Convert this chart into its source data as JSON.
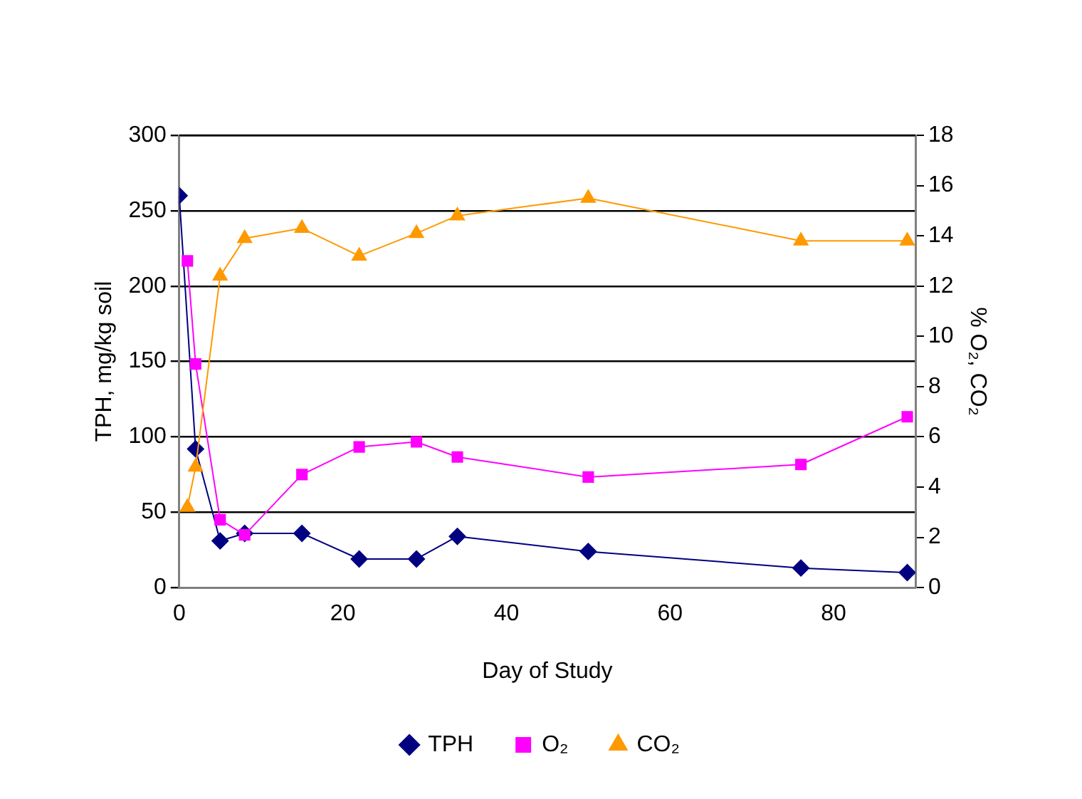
{
  "chart_data": {
    "type": "line",
    "xlabel": "Day of Study",
    "ylabel": "TPH, mg/kg soil",
    "y2label": "% O₂, CO₂",
    "xlim": [
      0,
      90
    ],
    "xticks": [
      0,
      20,
      40,
      60,
      80
    ],
    "ylim": [
      0,
      300
    ],
    "yticks": [
      0,
      50,
      100,
      150,
      200,
      250,
      300
    ],
    "y2lim": [
      0,
      18
    ],
    "y2ticks": [
      0,
      2,
      4,
      6,
      8,
      10,
      12,
      14,
      16,
      18
    ],
    "grid": "y",
    "legend": "bottom",
    "series": [
      {
        "name": "TPH",
        "color": "#000080",
        "marker": "diamond",
        "x": [
          0,
          2,
          5,
          8,
          15,
          22,
          29,
          34,
          50,
          76,
          89
        ],
        "values": [
          260,
          92,
          31,
          36,
          36,
          19,
          19,
          34,
          24,
          13,
          10
        ]
      },
      {
        "name": "O₂",
        "color": "#ff00ff",
        "marker": "square",
        "axis": "y2",
        "x": [
          1,
          2,
          5,
          8,
          15,
          22,
          29,
          34,
          50,
          76,
          89
        ],
        "values": [
          13.0,
          8.9,
          2.7,
          2.1,
          4.5,
          5.6,
          5.8,
          5.2,
          4.4,
          4.9,
          6.8
        ]
      },
      {
        "name": "CO₂",
        "color": "#ff9900",
        "marker": "triangle",
        "axis": "y2",
        "x": [
          1,
          2,
          5,
          8,
          15,
          22,
          29,
          34,
          50,
          76,
          89
        ],
        "values": [
          3.2,
          4.8,
          12.4,
          13.9,
          14.3,
          13.2,
          14.1,
          14.8,
          15.5,
          13.8,
          13.8
        ]
      }
    ]
  }
}
